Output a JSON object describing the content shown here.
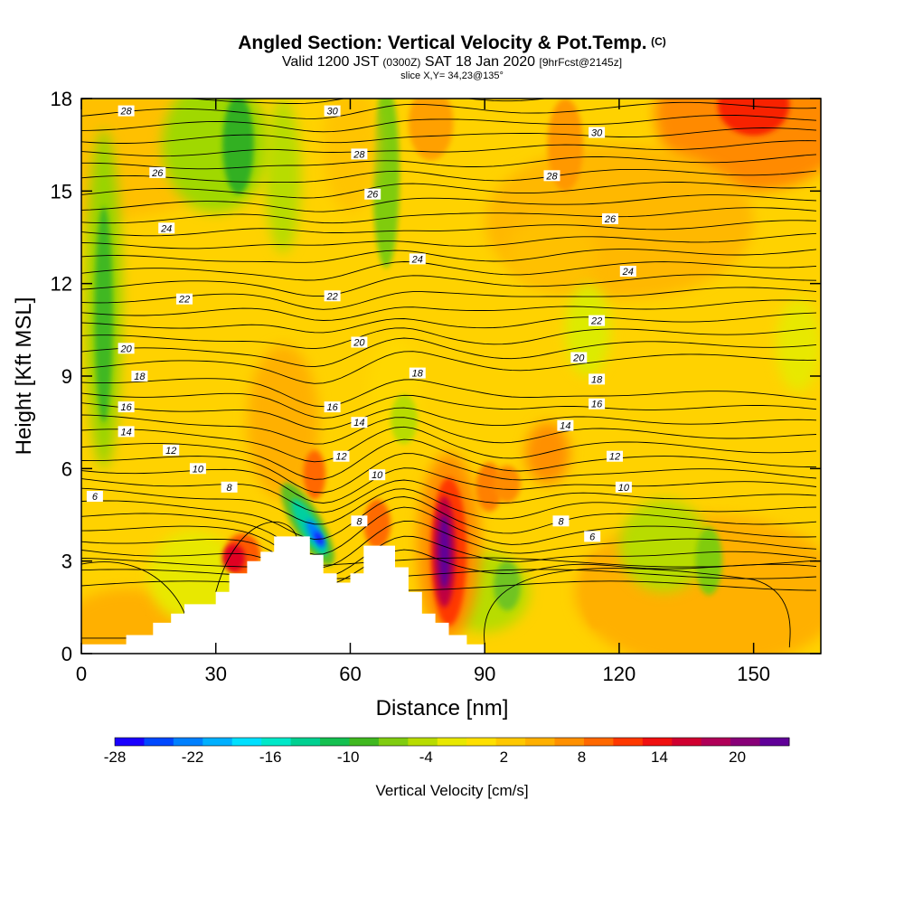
{
  "header": {
    "title": "Angled Section: Vertical Velocity & Pot.Temp.",
    "title_units": "(C)",
    "valid_prefix": "Valid 1200 JST",
    "valid_utc": "(0300Z)",
    "valid_date": "SAT 18 Jan 2020",
    "valid_fcst": "[9hrFcst@2145z]",
    "slice": "slice X,Y= 34,23@135°"
  },
  "chart_data": {
    "type": "heatmap",
    "xlabel": "Distance [nm]",
    "ylabel": "Height [Kft MSL]",
    "xlim": [
      0,
      165
    ],
    "ylim": [
      0,
      18
    ],
    "xticks": [
      0,
      30,
      60,
      90,
      120,
      150
    ],
    "yticks": [
      0,
      3,
      6,
      9,
      12,
      15,
      18
    ],
    "colorbar": {
      "label": "Vertical Velocity [cm/s]",
      "min": -28,
      "max": 24,
      "tick_labels": [
        -28,
        -22,
        -16,
        -10,
        -4,
        2,
        8,
        14,
        20
      ],
      "colors": [
        "#1a00ff",
        "#0048ff",
        "#0080ff",
        "#00b0ff",
        "#00e0ff",
        "#00e8c8",
        "#00d090",
        "#14c050",
        "#40b820",
        "#80cc10",
        "#b8dc00",
        "#e8e800",
        "#ffe000",
        "#ffc800",
        "#ffb000",
        "#ff9000",
        "#ff6800",
        "#ff3800",
        "#f01010",
        "#d00030",
        "#b00058",
        "#880078",
        "#600098"
      ]
    },
    "contour_labels": [
      {
        "label": "28",
        "x": 10,
        "y": 17.6
      },
      {
        "label": "26",
        "x": 17,
        "y": 15.6
      },
      {
        "label": "24",
        "x": 19,
        "y": 13.8
      },
      {
        "label": "22",
        "x": 23,
        "y": 11.5
      },
      {
        "label": "20",
        "x": 10,
        "y": 9.9
      },
      {
        "label": "18",
        "x": 13,
        "y": 9.0
      },
      {
        "label": "16",
        "x": 10,
        "y": 8.0
      },
      {
        "label": "14",
        "x": 10,
        "y": 7.2
      },
      {
        "label": "12",
        "x": 20,
        "y": 6.6
      },
      {
        "label": "10",
        "x": 26,
        "y": 6.0
      },
      {
        "label": "8",
        "x": 33,
        "y": 5.4
      },
      {
        "label": "6",
        "x": 3,
        "y": 5.1
      },
      {
        "label": "30",
        "x": 56,
        "y": 17.6
      },
      {
        "label": "28",
        "x": 62,
        "y": 16.2
      },
      {
        "label": "26",
        "x": 65,
        "y": 14.9
      },
      {
        "label": "24",
        "x": 75,
        "y": 12.8
      },
      {
        "label": "22",
        "x": 56,
        "y": 11.6
      },
      {
        "label": "20",
        "x": 62,
        "y": 10.1
      },
      {
        "label": "18",
        "x": 75,
        "y": 9.1
      },
      {
        "label": "16",
        "x": 56,
        "y": 8.0
      },
      {
        "label": "14",
        "x": 62,
        "y": 7.5
      },
      {
        "label": "12",
        "x": 58,
        "y": 6.4
      },
      {
        "label": "10",
        "x": 66,
        "y": 5.8
      },
      {
        "label": "8",
        "x": 62,
        "y": 4.3
      },
      {
        "label": "30",
        "x": 115,
        "y": 16.9
      },
      {
        "label": "28",
        "x": 105,
        "y": 15.5
      },
      {
        "label": "26",
        "x": 118,
        "y": 14.1
      },
      {
        "label": "24",
        "x": 122,
        "y": 12.4
      },
      {
        "label": "22",
        "x": 115,
        "y": 10.8
      },
      {
        "label": "20",
        "x": 111,
        "y": 9.6
      },
      {
        "label": "18",
        "x": 115,
        "y": 8.9
      },
      {
        "label": "16",
        "x": 115,
        "y": 8.1
      },
      {
        "label": "14",
        "x": 108,
        "y": 7.4
      },
      {
        "label": "12",
        "x": 119,
        "y": 6.4
      },
      {
        "label": "10",
        "x": 121,
        "y": 5.4
      },
      {
        "label": "8",
        "x": 107,
        "y": 4.3
      },
      {
        "label": "6",
        "x": 114,
        "y": 3.8
      }
    ],
    "terrain_profile": [
      [
        0,
        0.3
      ],
      [
        10,
        0.3
      ],
      [
        10,
        0.6
      ],
      [
        16,
        0.6
      ],
      [
        16,
        1.0
      ],
      [
        20,
        1.0
      ],
      [
        20,
        1.3
      ],
      [
        23,
        1.3
      ],
      [
        23,
        1.6
      ],
      [
        30,
        1.6
      ],
      [
        30,
        2.0
      ],
      [
        33,
        2.0
      ],
      [
        33,
        2.6
      ],
      [
        37,
        2.6
      ],
      [
        37,
        3.0
      ],
      [
        40,
        3.0
      ],
      [
        40,
        3.3
      ],
      [
        43,
        3.3
      ],
      [
        43,
        3.8
      ],
      [
        51,
        3.8
      ],
      [
        51,
        3.2
      ],
      [
        54,
        3.2
      ],
      [
        54,
        2.6
      ],
      [
        57,
        2.6
      ],
      [
        57,
        2.3
      ],
      [
        60,
        2.3
      ],
      [
        60,
        2.6
      ],
      [
        63,
        2.6
      ],
      [
        63,
        3.5
      ],
      [
        70,
        3.5
      ],
      [
        70,
        2.8
      ],
      [
        73,
        2.8
      ],
      [
        73,
        2.0
      ],
      [
        76,
        2.0
      ],
      [
        76,
        1.3
      ],
      [
        79,
        1.3
      ],
      [
        79,
        1.0
      ],
      [
        82,
        1.0
      ],
      [
        82,
        0.6
      ],
      [
        86,
        0.6
      ],
      [
        86,
        0.3
      ],
      [
        90,
        0.3
      ],
      [
        90,
        0
      ]
    ]
  }
}
